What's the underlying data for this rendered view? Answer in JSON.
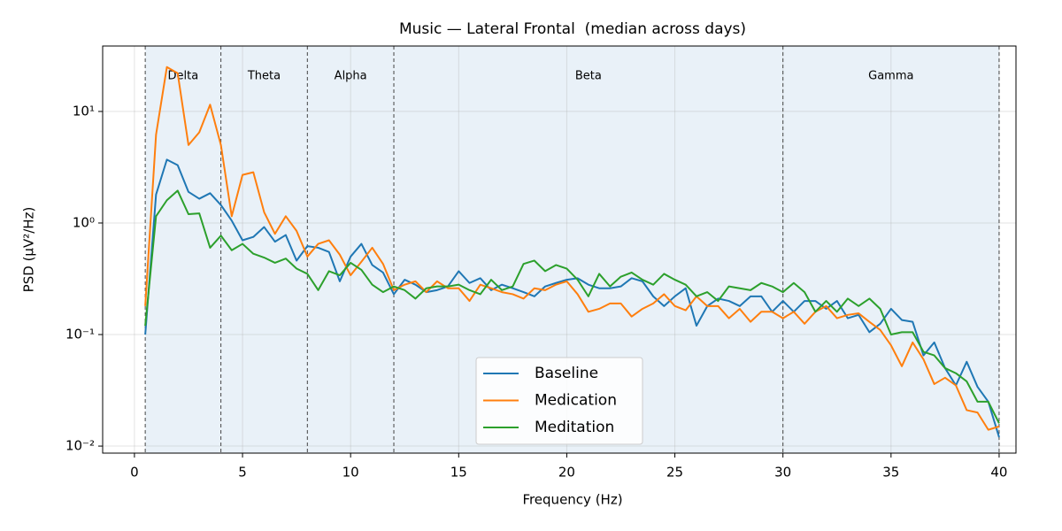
{
  "chart_data": {
    "type": "line",
    "title": "Music — Lateral Frontal  (median across days)",
    "x_label": "Frequency (Hz)",
    "y_label": "PSD (µV²/Hz)",
    "log_y": true,
    "grid": true,
    "legend_position": "lower center",
    "band_color": "#dbe8f4",
    "bands": [
      {
        "name": "Delta",
        "range": [
          0.5,
          4
        ]
      },
      {
        "name": "Theta",
        "range": [
          4,
          8
        ]
      },
      {
        "name": "Alpha",
        "range": [
          8,
          12
        ]
      },
      {
        "name": "Beta",
        "range": [
          12,
          30
        ]
      },
      {
        "name": "Gamma",
        "range": [
          30,
          40
        ]
      }
    ],
    "xlim": [
      -1.47,
      40.78
    ],
    "ylim": [
      0.00865,
      38.6
    ],
    "xticks": [
      0,
      5,
      10,
      15,
      20,
      25,
      30,
      35,
      40
    ],
    "yticks": [
      {
        "value": 0.01,
        "label": "10⁻²"
      },
      {
        "value": 0.1,
        "label": "10⁻¹"
      },
      {
        "value": 1,
        "label": "10⁰"
      },
      {
        "value": 10,
        "label": "10¹"
      }
    ],
    "x": [
      0.5,
      1,
      1.5,
      2,
      2.5,
      3,
      3.5,
      4,
      4.5,
      5,
      5.5,
      6,
      6.5,
      7,
      7.5,
      8,
      8.5,
      9,
      9.5,
      10,
      10.5,
      11,
      11.5,
      12,
      12.5,
      13,
      13.5,
      14,
      14.5,
      15,
      15.5,
      16,
      16.5,
      17,
      17.5,
      18,
      18.5,
      19,
      19.5,
      20,
      20.5,
      21,
      21.5,
      22,
      22.5,
      23,
      23.5,
      24,
      24.5,
      25,
      25.5,
      26,
      26.5,
      27,
      27.5,
      28,
      28.5,
      29,
      29.5,
      30,
      30.5,
      31,
      31.5,
      32,
      32.5,
      33,
      33.5,
      34,
      34.5,
      35,
      35.5,
      36,
      36.5,
      37,
      37.5,
      38,
      38.5,
      39,
      39.5,
      40
    ],
    "series": [
      {
        "name": "Baseline",
        "color": "#1f77b4",
        "values": [
          0.1,
          1.8,
          3.7,
          3.3,
          1.9,
          1.65,
          1.85,
          1.45,
          1.05,
          0.7,
          0.75,
          0.92,
          0.68,
          0.78,
          0.46,
          0.62,
          0.6,
          0.55,
          0.3,
          0.5,
          0.65,
          0.42,
          0.36,
          0.23,
          0.31,
          0.28,
          0.24,
          0.25,
          0.27,
          0.37,
          0.29,
          0.32,
          0.25,
          0.28,
          0.26,
          0.24,
          0.22,
          0.27,
          0.29,
          0.31,
          0.32,
          0.28,
          0.26,
          0.26,
          0.27,
          0.32,
          0.3,
          0.22,
          0.18,
          0.22,
          0.26,
          0.12,
          0.18,
          0.21,
          0.2,
          0.18,
          0.22,
          0.22,
          0.16,
          0.2,
          0.16,
          0.2,
          0.2,
          0.17,
          0.2,
          0.14,
          0.15,
          0.105,
          0.125,
          0.17,
          0.135,
          0.13,
          0.065,
          0.085,
          0.05,
          0.035,
          0.057,
          0.034,
          0.025,
          0.012
        ]
      },
      {
        "name": "Medication",
        "color": "#ff7f0e",
        "values": [
          0.18,
          6.2,
          25,
          22,
          5,
          6.5,
          11.5,
          5,
          1.15,
          2.7,
          2.85,
          1.25,
          0.8,
          1.15,
          0.85,
          0.5,
          0.65,
          0.7,
          0.52,
          0.34,
          0.45,
          0.6,
          0.43,
          0.25,
          0.28,
          0.3,
          0.24,
          0.3,
          0.26,
          0.26,
          0.2,
          0.28,
          0.26,
          0.24,
          0.23,
          0.21,
          0.26,
          0.25,
          0.28,
          0.3,
          0.23,
          0.16,
          0.17,
          0.19,
          0.19,
          0.145,
          0.17,
          0.19,
          0.23,
          0.18,
          0.165,
          0.22,
          0.18,
          0.18,
          0.14,
          0.17,
          0.13,
          0.16,
          0.16,
          0.14,
          0.16,
          0.125,
          0.16,
          0.18,
          0.14,
          0.15,
          0.155,
          0.13,
          0.11,
          0.08,
          0.052,
          0.085,
          0.06,
          0.036,
          0.041,
          0.035,
          0.021,
          0.02,
          0.014,
          0.015
        ]
      },
      {
        "name": "Meditation",
        "color": "#2ca02c",
        "values": [
          0.12,
          1.15,
          1.6,
          1.95,
          1.2,
          1.22,
          0.6,
          0.77,
          0.57,
          0.65,
          0.53,
          0.49,
          0.44,
          0.48,
          0.39,
          0.35,
          0.25,
          0.37,
          0.34,
          0.44,
          0.38,
          0.28,
          0.24,
          0.27,
          0.25,
          0.21,
          0.26,
          0.27,
          0.27,
          0.28,
          0.25,
          0.23,
          0.31,
          0.25,
          0.27,
          0.43,
          0.46,
          0.37,
          0.42,
          0.39,
          0.31,
          0.22,
          0.35,
          0.27,
          0.33,
          0.36,
          0.31,
          0.28,
          0.35,
          0.31,
          0.28,
          0.22,
          0.24,
          0.2,
          0.27,
          0.26,
          0.25,
          0.29,
          0.27,
          0.24,
          0.29,
          0.24,
          0.16,
          0.2,
          0.16,
          0.21,
          0.18,
          0.21,
          0.17,
          0.1,
          0.105,
          0.105,
          0.07,
          0.065,
          0.05,
          0.045,
          0.038,
          0.025,
          0.025,
          0.016
        ]
      }
    ]
  }
}
